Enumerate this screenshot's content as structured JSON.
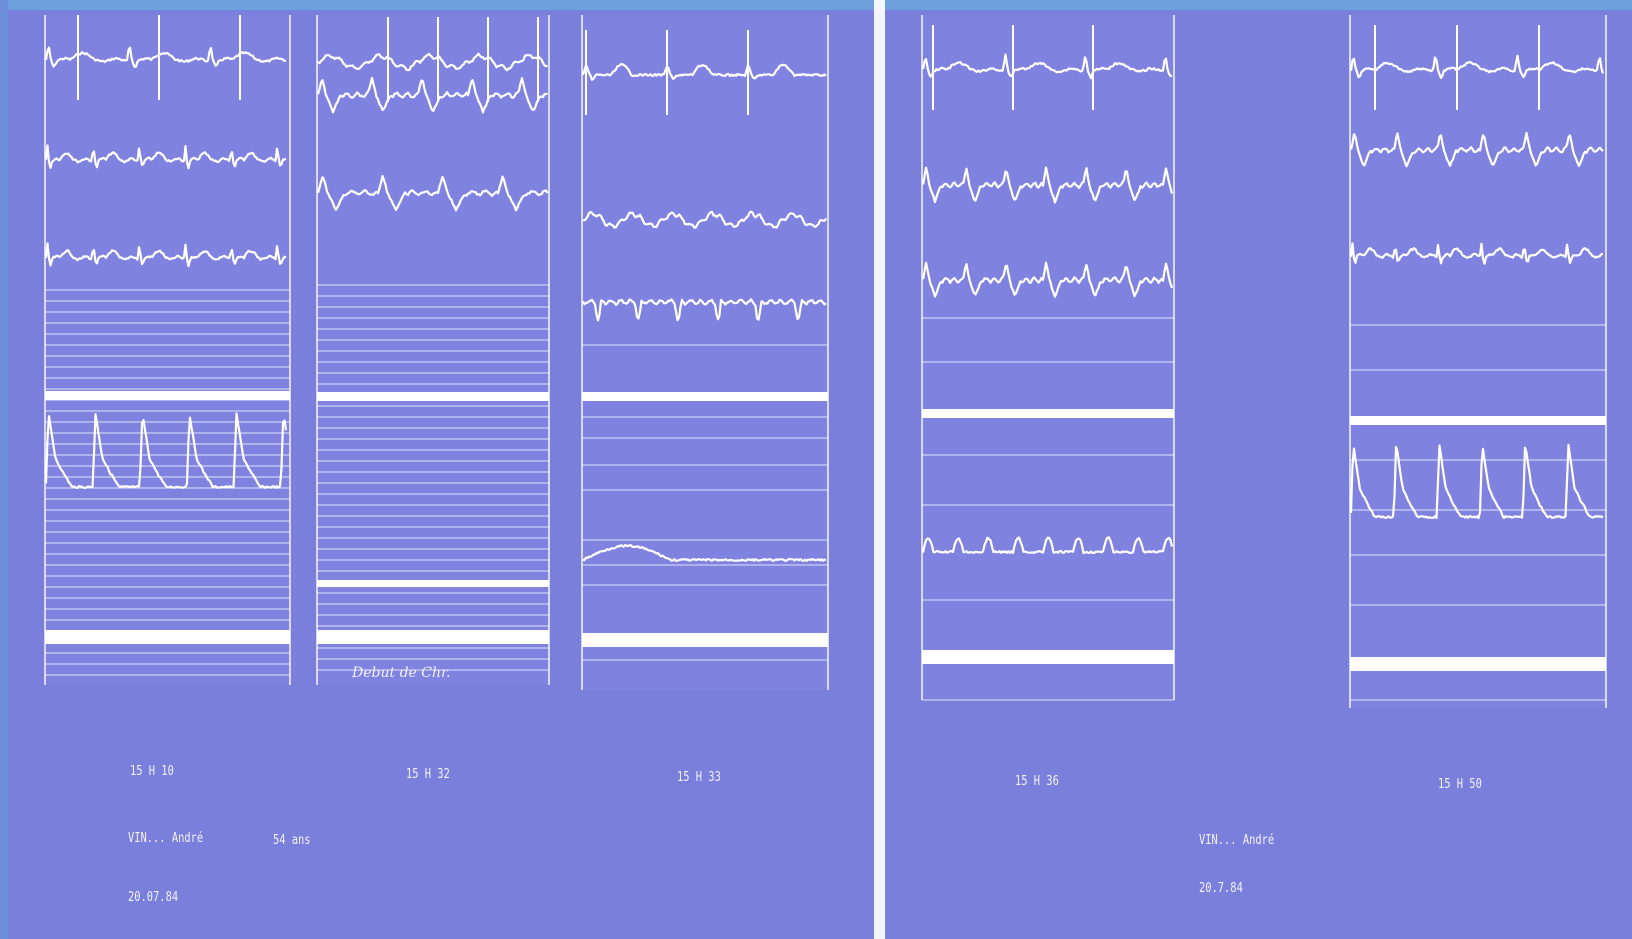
{
  "panels": [
    {
      "id": "p1",
      "time": "15 H 10"
    },
    {
      "id": "p2",
      "time": "15 H 32",
      "annotation": "Debut de Chr."
    },
    {
      "id": "p3",
      "time": "15 H 33"
    },
    {
      "id": "p4",
      "time": "15 H 36"
    },
    {
      "id": "p5",
      "time": "15 H 50"
    }
  ],
  "left_plate": {
    "patient": "VIN... André",
    "age": "54 ans",
    "date": "20.07.84"
  },
  "right_plate": {
    "patient": "VIN... André",
    "date": "20.7.84"
  },
  "colors": {
    "background": "#7b7fdc",
    "strip": "#8589e2",
    "trace": "#ffffff"
  }
}
